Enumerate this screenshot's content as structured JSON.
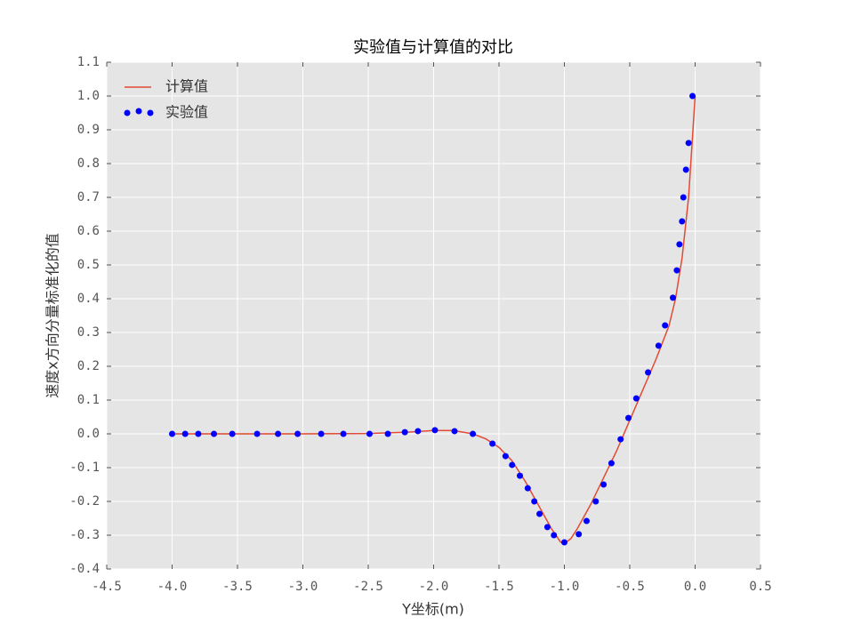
{
  "chart_data": {
    "type": "line",
    "title": "实验值与计算值的对比",
    "x_label": "Y坐标(m)",
    "y_label": "速度x方向分量标准化的值",
    "xlim": [
      -4.5,
      0.5
    ],
    "ylim": [
      -0.4,
      1.1
    ],
    "xticks": [
      -4.5,
      {
        "value": -4,
        "label": "-4.0"
      },
      -3.5,
      {
        "value": -3,
        "label": "-3.0"
      },
      -2.5,
      {
        "value": -2,
        "label": "-2.0"
      },
      -1.5,
      {
        "value": -1,
        "label": "-1.0"
      },
      -0.5,
      {
        "value": 0,
        "label": "0.0"
      },
      0.5
    ],
    "yticks": [
      -0.4,
      -0.3,
      -0.2,
      -0.1,
      {
        "value": 0,
        "label": "0.0"
      },
      0.1,
      0.2,
      0.3,
      0.4,
      0.5,
      0.6,
      0.7,
      0.8,
      0.9,
      {
        "value": 1,
        "label": "1.0"
      },
      1.1
    ],
    "grid": true,
    "legend": "upper left",
    "series": [
      {
        "name": "计算值",
        "type": "line",
        "color": "#e24a33",
        "x": [
          -4,
          -3,
          -2.5,
          -2.2,
          -2.0,
          -1.85,
          -1.7,
          -1.6,
          -1.5,
          -1.4,
          -1.3,
          -1.2,
          -1.1,
          -1.03,
          -1.0,
          -0.95,
          -0.9,
          -0.8,
          -0.7,
          -0.6,
          -0.5,
          -0.4,
          -0.3,
          -0.2,
          -0.15,
          -0.1,
          -0.05,
          0
        ],
        "values": [
          0,
          0,
          0.001,
          0.005,
          0.01,
          0.01,
          0.0,
          -0.015,
          -0.04,
          -0.08,
          -0.14,
          -0.21,
          -0.28,
          -0.32,
          -0.325,
          -0.31,
          -0.28,
          -0.21,
          -0.13,
          -0.05,
          0.04,
          0.13,
          0.22,
          0.32,
          0.4,
          0.52,
          0.7,
          1.0
        ]
      },
      {
        "name": "实验值",
        "type": "scatter",
        "color": "#0000ff",
        "x": [
          -4.0,
          -3.9,
          -3.8,
          -3.68,
          -3.54,
          -3.35,
          -3.19,
          -3.04,
          -2.86,
          -2.69,
          -2.49,
          -2.35,
          -2.22,
          -2.12,
          -1.99,
          -1.84,
          -1.7,
          -1.55,
          -1.45,
          -1.4,
          -1.34,
          -1.28,
          -1.23,
          -1.19,
          -1.13,
          -1.08,
          -1.0,
          -0.89,
          -0.83,
          -0.76,
          -0.7,
          -0.64,
          -0.57,
          -0.51,
          -0.45,
          -0.36,
          -0.28,
          -0.23,
          -0.17,
          -0.14,
          -0.12,
          -0.1,
          -0.09,
          -0.07,
          -0.05,
          -0.02
        ],
        "values": [
          0,
          0,
          0,
          0,
          0,
          0,
          0,
          0,
          0,
          0,
          0,
          0,
          0.005,
          0.008,
          0.011,
          0.008,
          0.0,
          -0.029,
          -0.066,
          -0.092,
          -0.124,
          -0.161,
          -0.2,
          -0.237,
          -0.276,
          -0.3,
          -0.321,
          -0.297,
          -0.258,
          -0.2,
          -0.15,
          -0.087,
          -0.016,
          0.047,
          0.105,
          0.182,
          0.261,
          0.321,
          0.403,
          0.484,
          0.561,
          0.629,
          0.7,
          0.782,
          0.861,
          1.0
        ]
      }
    ]
  }
}
